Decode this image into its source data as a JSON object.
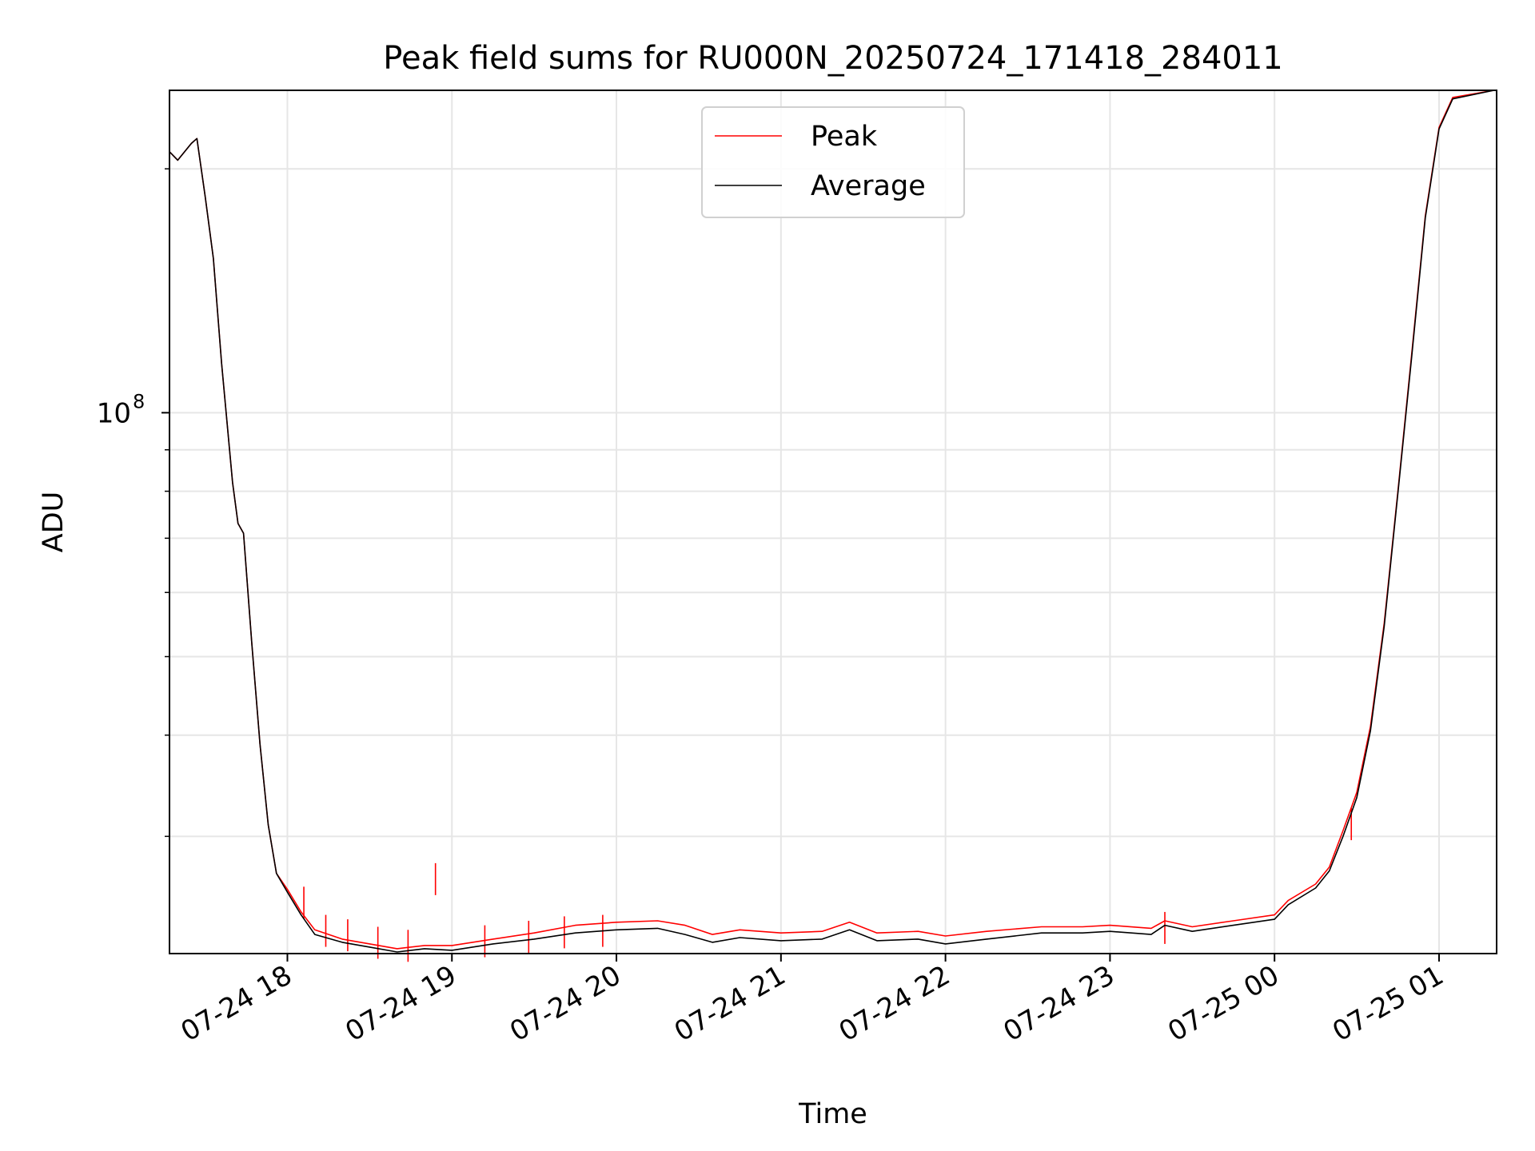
{
  "chart_data": {
    "type": "line",
    "title": "Peak field sums for RU000N_20250724_171418_284011",
    "xlabel": "Time",
    "ylabel": "ADU",
    "y_scale": "log",
    "grid": true,
    "legend_position": "top-center",
    "x_range": [
      "2025-07-24 17:17",
      "2025-07-25 01:21"
    ],
    "x_ticks": [
      "07-24 18",
      "07-24 19",
      "07-24 20",
      "07-24 21",
      "07-24 22",
      "07-24 23",
      "07-25 00",
      "07-25 01"
    ],
    "y_range": [
      21500000,
      250000000
    ],
    "y_tick_labels": [
      {
        "value": 100000000,
        "base": "10",
        "exponent": "8"
      }
    ],
    "y_minor_ticks": [
      30000000,
      40000000,
      50000000,
      60000000,
      70000000,
      80000000,
      90000000,
      200000000
    ],
    "series": [
      {
        "name": "Peak",
        "color": "#ff0000",
        "points": [
          [
            "2025-07-24 17:17",
            210000000
          ],
          [
            "2025-07-24 17:20",
            205000000
          ],
          [
            "2025-07-24 17:25",
            215000000
          ],
          [
            "2025-07-24 17:27",
            218000000
          ],
          [
            "2025-07-24 17:30",
            185000000
          ],
          [
            "2025-07-24 17:33",
            155000000
          ],
          [
            "2025-07-24 17:36",
            115000000
          ],
          [
            "2025-07-24 17:40",
            82000000
          ],
          [
            "2025-07-24 17:42",
            73000000
          ],
          [
            "2025-07-24 17:44",
            71000000
          ],
          [
            "2025-07-24 17:47",
            52000000
          ],
          [
            "2025-07-24 17:50",
            39000000
          ],
          [
            "2025-07-24 17:53",
            31000000
          ],
          [
            "2025-07-24 17:56",
            27000000
          ],
          [
            "2025-07-24 18:00",
            25800000
          ],
          [
            "2025-07-24 18:05",
            24200000
          ],
          [
            "2025-07-24 18:10",
            23000000
          ],
          [
            "2025-07-24 18:20",
            22400000
          ],
          [
            "2025-07-24 18:30",
            22100000
          ],
          [
            "2025-07-24 18:40",
            21800000
          ],
          [
            "2025-07-24 18:50",
            22000000
          ],
          [
            "2025-07-24 19:00",
            22000000
          ],
          [
            "2025-07-24 19:15",
            22400000
          ],
          [
            "2025-07-24 19:30",
            22800000
          ],
          [
            "2025-07-24 19:45",
            23300000
          ],
          [
            "2025-07-24 20:00",
            23500000
          ],
          [
            "2025-07-24 20:15",
            23600000
          ],
          [
            "2025-07-24 20:25",
            23300000
          ],
          [
            "2025-07-24 20:35",
            22700000
          ],
          [
            "2025-07-24 20:45",
            23000000
          ],
          [
            "2025-07-24 21:00",
            22800000
          ],
          [
            "2025-07-24 21:15",
            22900000
          ],
          [
            "2025-07-24 21:25",
            23500000
          ],
          [
            "2025-07-24 21:35",
            22800000
          ],
          [
            "2025-07-24 21:50",
            22900000
          ],
          [
            "2025-07-24 22:00",
            22600000
          ],
          [
            "2025-07-24 22:15",
            22900000
          ],
          [
            "2025-07-24 22:35",
            23200000
          ],
          [
            "2025-07-24 22:50",
            23200000
          ],
          [
            "2025-07-24 23:00",
            23300000
          ],
          [
            "2025-07-24 23:15",
            23100000
          ],
          [
            "2025-07-24 23:20",
            23600000
          ],
          [
            "2025-07-24 23:30",
            23200000
          ],
          [
            "2025-07-24 23:45",
            23600000
          ],
          [
            "2025-07-25 00:00",
            24000000
          ],
          [
            "2025-07-25 00:05",
            25000000
          ],
          [
            "2025-07-25 00:15",
            26200000
          ],
          [
            "2025-07-25 00:20",
            27500000
          ],
          [
            "2025-07-25 00:25",
            30500000
          ],
          [
            "2025-07-25 00:30",
            34000000
          ],
          [
            "2025-07-25 00:35",
            41000000
          ],
          [
            "2025-07-25 00:40",
            55000000
          ],
          [
            "2025-07-25 00:45",
            80000000
          ],
          [
            "2025-07-25 00:50",
            118000000
          ],
          [
            "2025-07-25 00:55",
            175000000
          ],
          [
            "2025-07-25 01:00",
            225000000
          ],
          [
            "2025-07-25 01:05",
            245000000
          ],
          [
            "2025-07-25 01:20",
            250000000
          ]
        ],
        "spikes": [
          [
            "2025-07-24 18:06",
            26000000
          ],
          [
            "2025-07-24 18:14",
            24000000
          ],
          [
            "2025-07-24 18:22",
            23700000
          ],
          [
            "2025-07-24 18:33",
            23200000
          ],
          [
            "2025-07-24 18:44",
            23000000
          ],
          [
            "2025-07-24 18:54",
            27800000
          ],
          [
            "2025-07-24 19:12",
            23300000
          ],
          [
            "2025-07-24 19:28",
            23600000
          ],
          [
            "2025-07-24 19:41",
            23900000
          ],
          [
            "2025-07-24 19:55",
            24000000
          ],
          [
            "2025-07-24 23:20",
            24200000
          ],
          [
            "2025-07-25 00:28",
            32500000
          ]
        ]
      },
      {
        "name": "Average",
        "color": "#000000",
        "points": [
          [
            "2025-07-24 17:17",
            210000000
          ],
          [
            "2025-07-24 17:20",
            205000000
          ],
          [
            "2025-07-24 17:25",
            215000000
          ],
          [
            "2025-07-24 17:27",
            218000000
          ],
          [
            "2025-07-24 17:30",
            185000000
          ],
          [
            "2025-07-24 17:33",
            155000000
          ],
          [
            "2025-07-24 17:36",
            115000000
          ],
          [
            "2025-07-24 17:40",
            82000000
          ],
          [
            "2025-07-24 17:42",
            73000000
          ],
          [
            "2025-07-24 17:44",
            71000000
          ],
          [
            "2025-07-24 17:47",
            52000000
          ],
          [
            "2025-07-24 17:50",
            39000000
          ],
          [
            "2025-07-24 17:53",
            31000000
          ],
          [
            "2025-07-24 17:56",
            27000000
          ],
          [
            "2025-07-24 18:00",
            25600000
          ],
          [
            "2025-07-24 18:05",
            24000000
          ],
          [
            "2025-07-24 18:10",
            22700000
          ],
          [
            "2025-07-24 18:20",
            22200000
          ],
          [
            "2025-07-24 18:30",
            21900000
          ],
          [
            "2025-07-24 18:40",
            21600000
          ],
          [
            "2025-07-24 18:50",
            21800000
          ],
          [
            "2025-07-24 19:00",
            21700000
          ],
          [
            "2025-07-24 19:15",
            22100000
          ],
          [
            "2025-07-24 19:30",
            22400000
          ],
          [
            "2025-07-24 19:45",
            22800000
          ],
          [
            "2025-07-24 20:00",
            23000000
          ],
          [
            "2025-07-24 20:15",
            23100000
          ],
          [
            "2025-07-24 20:25",
            22700000
          ],
          [
            "2025-07-24 20:35",
            22200000
          ],
          [
            "2025-07-24 20:45",
            22500000
          ],
          [
            "2025-07-24 21:00",
            22300000
          ],
          [
            "2025-07-24 21:15",
            22400000
          ],
          [
            "2025-07-24 21:25",
            23000000
          ],
          [
            "2025-07-24 21:35",
            22300000
          ],
          [
            "2025-07-24 21:50",
            22400000
          ],
          [
            "2025-07-24 22:00",
            22100000
          ],
          [
            "2025-07-24 22:15",
            22400000
          ],
          [
            "2025-07-24 22:35",
            22800000
          ],
          [
            "2025-07-24 22:50",
            22800000
          ],
          [
            "2025-07-24 23:00",
            22900000
          ],
          [
            "2025-07-24 23:15",
            22700000
          ],
          [
            "2025-07-24 23:20",
            23300000
          ],
          [
            "2025-07-24 23:30",
            22900000
          ],
          [
            "2025-07-24 23:45",
            23300000
          ],
          [
            "2025-07-25 00:00",
            23700000
          ],
          [
            "2025-07-25 00:05",
            24700000
          ],
          [
            "2025-07-25 00:15",
            25900000
          ],
          [
            "2025-07-25 00:20",
            27200000
          ],
          [
            "2025-07-25 00:25",
            30000000
          ],
          [
            "2025-07-25 00:30",
            33500000
          ],
          [
            "2025-07-25 00:35",
            40500000
          ],
          [
            "2025-07-25 00:40",
            54500000
          ],
          [
            "2025-07-25 00:45",
            79500000
          ],
          [
            "2025-07-25 00:50",
            117000000
          ],
          [
            "2025-07-25 00:55",
            174000000
          ],
          [
            "2025-07-25 01:00",
            224000000
          ],
          [
            "2025-07-25 01:05",
            244000000
          ],
          [
            "2025-07-25 01:20",
            250000000
          ]
        ]
      }
    ]
  }
}
